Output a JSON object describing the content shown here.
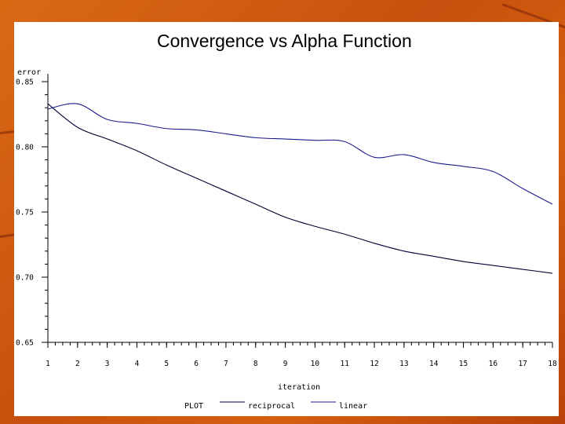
{
  "chart_data": {
    "type": "line",
    "title": "Convergence vs Alpha Function",
    "ylabel": "error",
    "xlabel": "iteration",
    "x": [
      1,
      2,
      3,
      4,
      5,
      6,
      7,
      8,
      9,
      10,
      11,
      12,
      13,
      14,
      15,
      16,
      17,
      18
    ],
    "ylim": [
      0.65,
      0.85
    ],
    "yticks": [
      "0.65",
      "0.70",
      "0.75",
      "0.80",
      "0.85"
    ],
    "xticks": [
      "1",
      "2",
      "3",
      "4",
      "5",
      "6",
      "7",
      "8",
      "9",
      "10",
      "11",
      "12",
      "13",
      "14",
      "15",
      "16",
      "17",
      "18"
    ],
    "legend_title": "PLOT",
    "legend_placement": "bottom",
    "series": [
      {
        "name": "reciprocal",
        "color": "#000033",
        "values": [
          0.833,
          0.815,
          0.806,
          0.797,
          0.786,
          0.776,
          0.766,
          0.756,
          0.746,
          0.739,
          0.733,
          0.726,
          0.72,
          0.716,
          0.712,
          0.709,
          0.706,
          0.703
        ]
      },
      {
        "name": "linear",
        "color": "#1a1a8c",
        "values": [
          0.829,
          0.833,
          0.821,
          0.818,
          0.814,
          0.813,
          0.81,
          0.807,
          0.806,
          0.805,
          0.804,
          0.792,
          0.794,
          0.788,
          0.785,
          0.781,
          0.768,
          0.756
        ]
      }
    ]
  }
}
